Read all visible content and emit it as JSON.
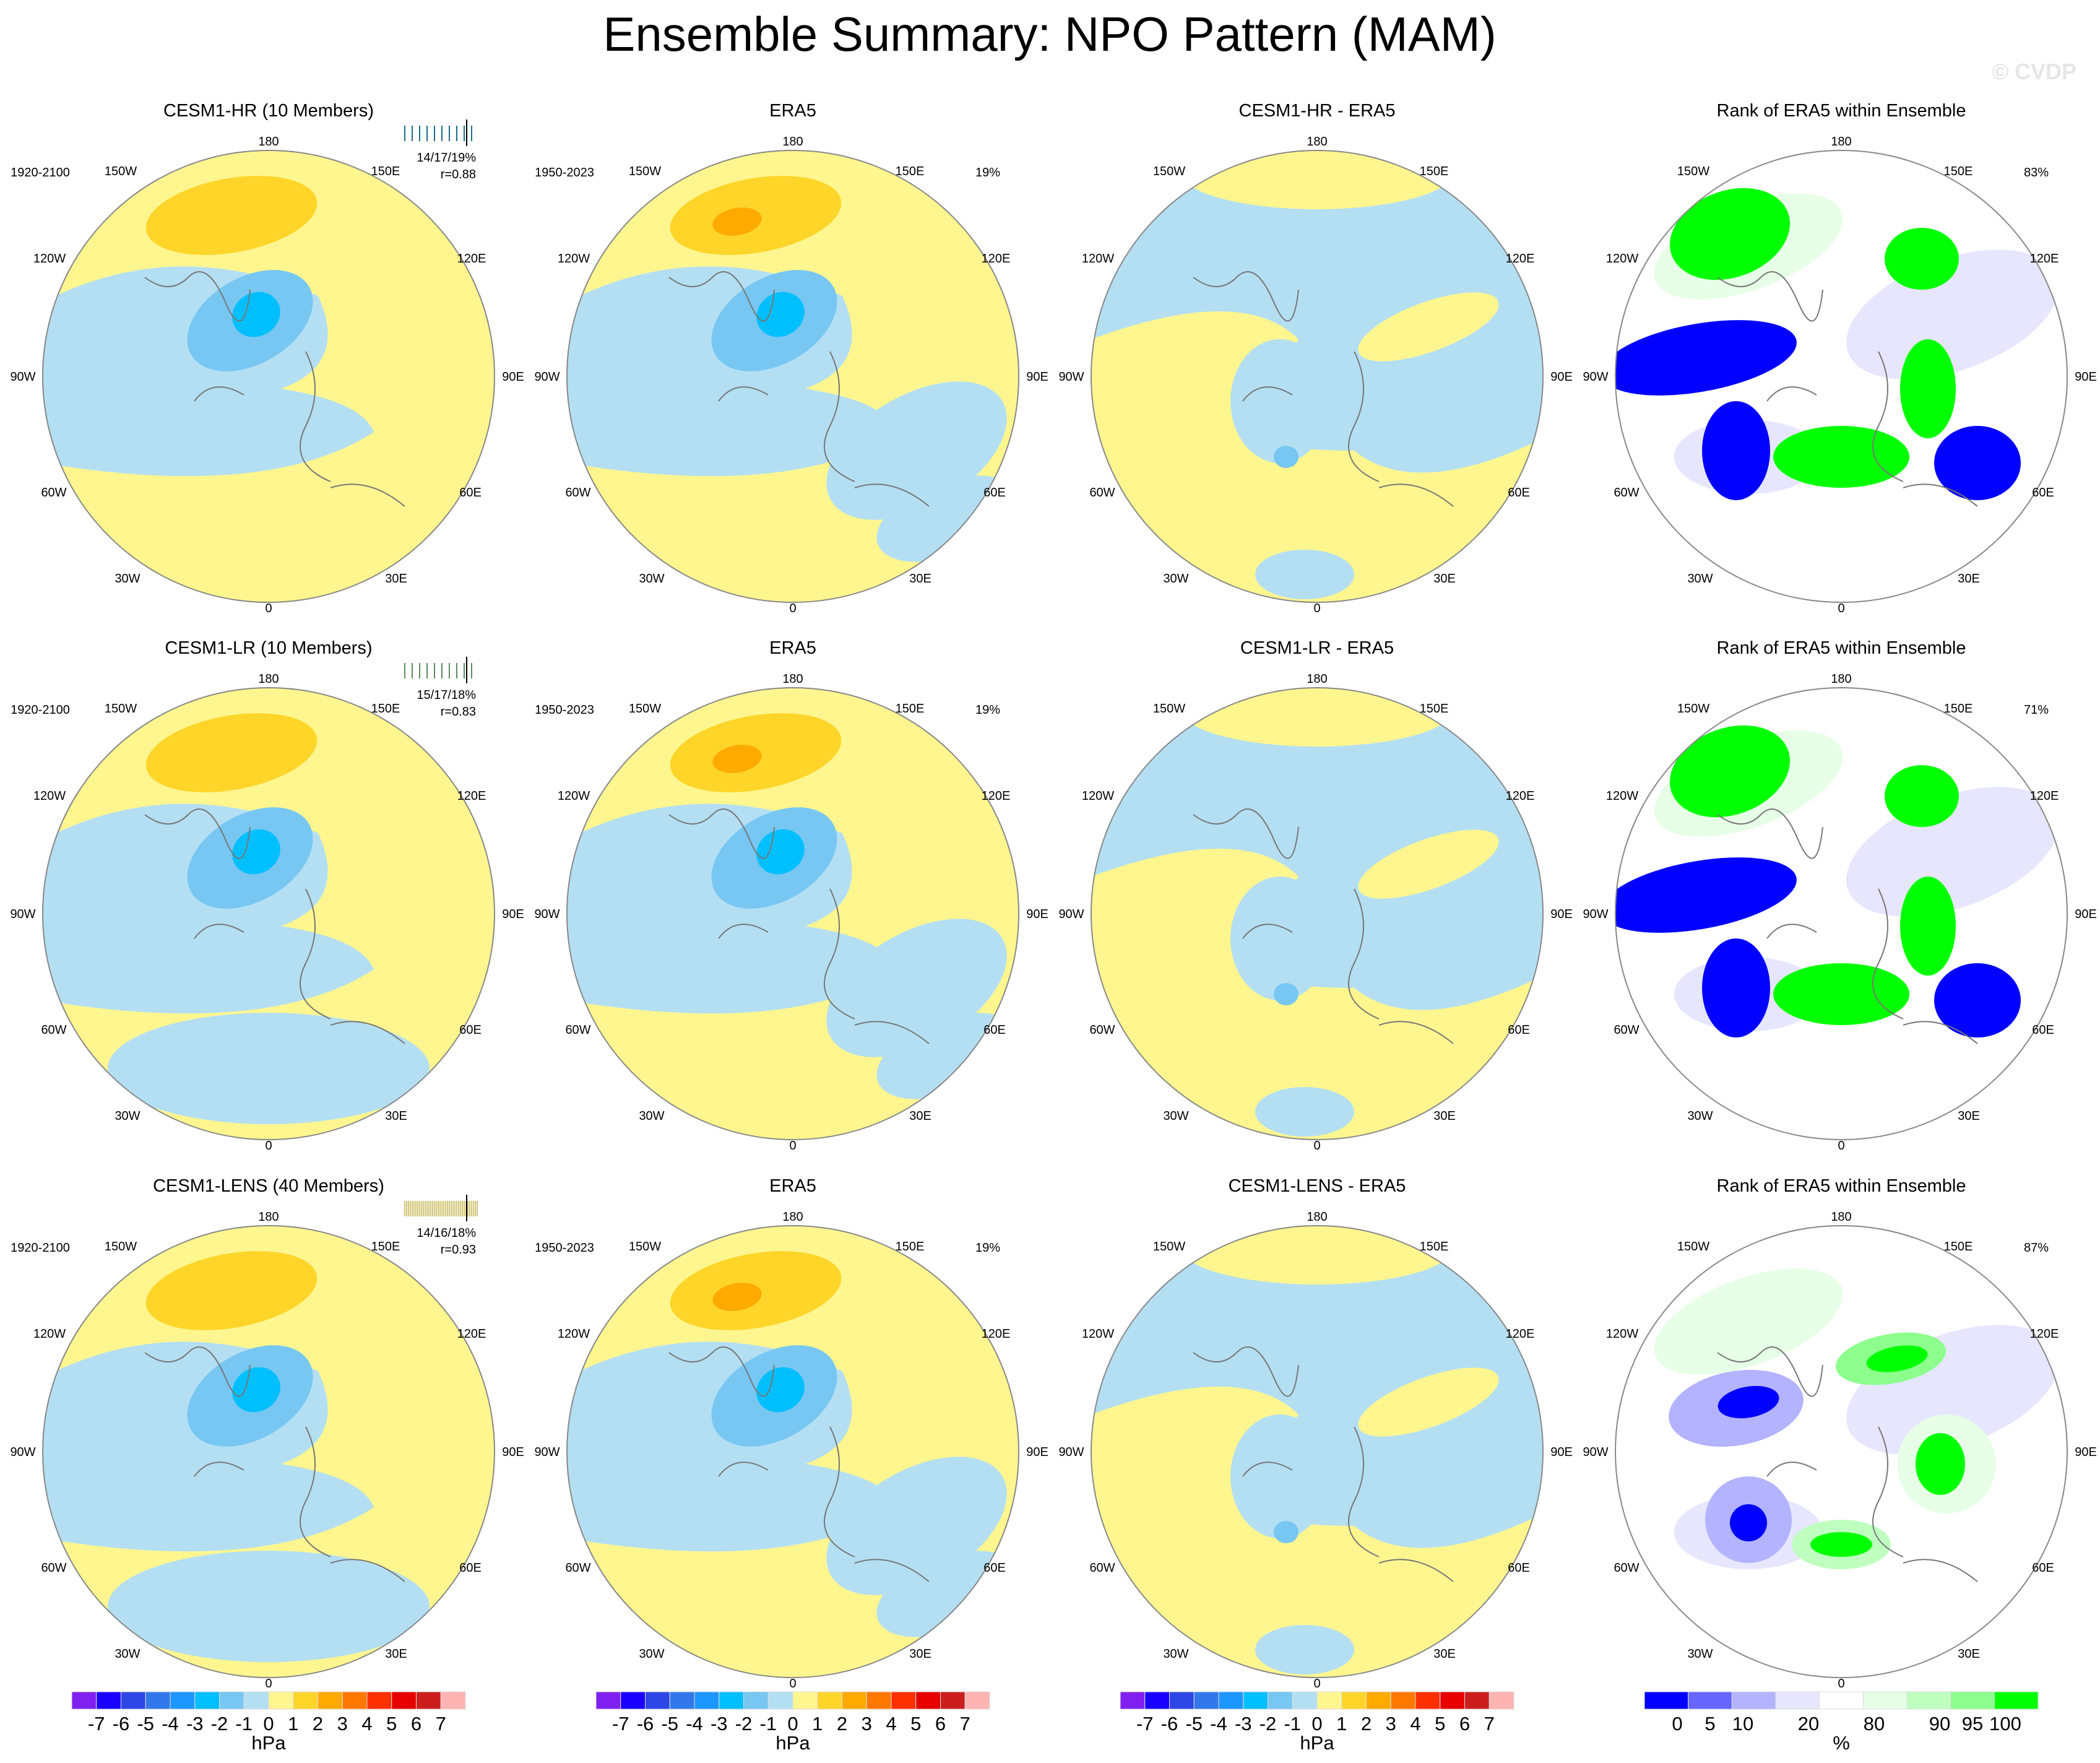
{
  "title": "Ensemble Summary: NPO Pattern (MAM)",
  "watermark": "© CVDP",
  "map_labels": [
    "180",
    "150E",
    "120E",
    "90E",
    "60E",
    "30E",
    "0",
    "30W",
    "60W",
    "90W",
    "120W",
    "150W"
  ],
  "colors": {
    "land_outline": "#777777",
    "circle_border": "#888888",
    "cesm1_hr": "#1a6e8c",
    "cesm1_lr": "#5e8a64",
    "cesm1_lens": "#d2c678"
  },
  "chart_data": [
    {
      "type": "heatmap",
      "projection": "north polar stereographic",
      "rows": [
        {
          "model": {
            "title": "CESM1-HR (10 Members)",
            "title_color": "#1a6e8c",
            "period": "1920-2100",
            "stats": "14/17/19%",
            "r": "r=0.88"
          },
          "obs": {
            "title": "ERA5",
            "period": "1950-2023",
            "pct": "19%"
          },
          "diff": {
            "title": "CESM1-HR - ERA5"
          },
          "rank": {
            "title": "Rank of ERA5 within Ensemble",
            "pct": "83%"
          }
        },
        {
          "model": {
            "title": "CESM1-LR (10 Members)",
            "title_color": "#5e8a64",
            "period": "1920-2100",
            "stats": "15/17/18%",
            "r": "r=0.83"
          },
          "obs": {
            "title": "ERA5",
            "period": "1950-2023",
            "pct": "19%"
          },
          "diff": {
            "title": "CESM1-LR - ERA5"
          },
          "rank": {
            "title": "Rank of ERA5 within Ensemble",
            "pct": "71%"
          }
        },
        {
          "model": {
            "title": "CESM1-LENS (40 Members)",
            "title_color": "#d2c678",
            "period": "1920-2100",
            "stats": "14/16/18%",
            "r": "r=0.93"
          },
          "obs": {
            "title": "ERA5",
            "period": "1950-2023",
            "pct": "19%"
          },
          "diff": {
            "title": "CESM1-LENS - ERA5"
          },
          "rank": {
            "title": "Rank of ERA5 within Ensemble",
            "pct": "87%"
          }
        }
      ]
    }
  ],
  "colorbar_hpa": {
    "unit": "hPa",
    "ticks": [
      "-7",
      "-6",
      "-5",
      "-4",
      "-3",
      "-2",
      "-1",
      "0",
      "1",
      "2",
      "3",
      "4",
      "5",
      "6",
      "7"
    ],
    "colors": [
      "#8020f0",
      "#1a00ff",
      "#2d46e6",
      "#3278ec",
      "#1e96ff",
      "#00bfff",
      "#77c7f2",
      "#b4dff3",
      "#fff68f",
      "#ffd52a",
      "#ffaa00",
      "#ff7800",
      "#ff3000",
      "#e60000",
      "#cd1e1e",
      "#ffb4b4"
    ]
  },
  "colorbar_rank": {
    "unit": "%",
    "ticks": [
      "0",
      "5",
      "10",
      "20",
      "80",
      "90",
      "95",
      "100"
    ],
    "colors": [
      "#0000ff",
      "#6666ff",
      "#b3b3ff",
      "#e6e6ff",
      "#ffffff",
      "#e6ffe6",
      "#bfffbf",
      "#8cff8c",
      "#00ff00"
    ]
  }
}
